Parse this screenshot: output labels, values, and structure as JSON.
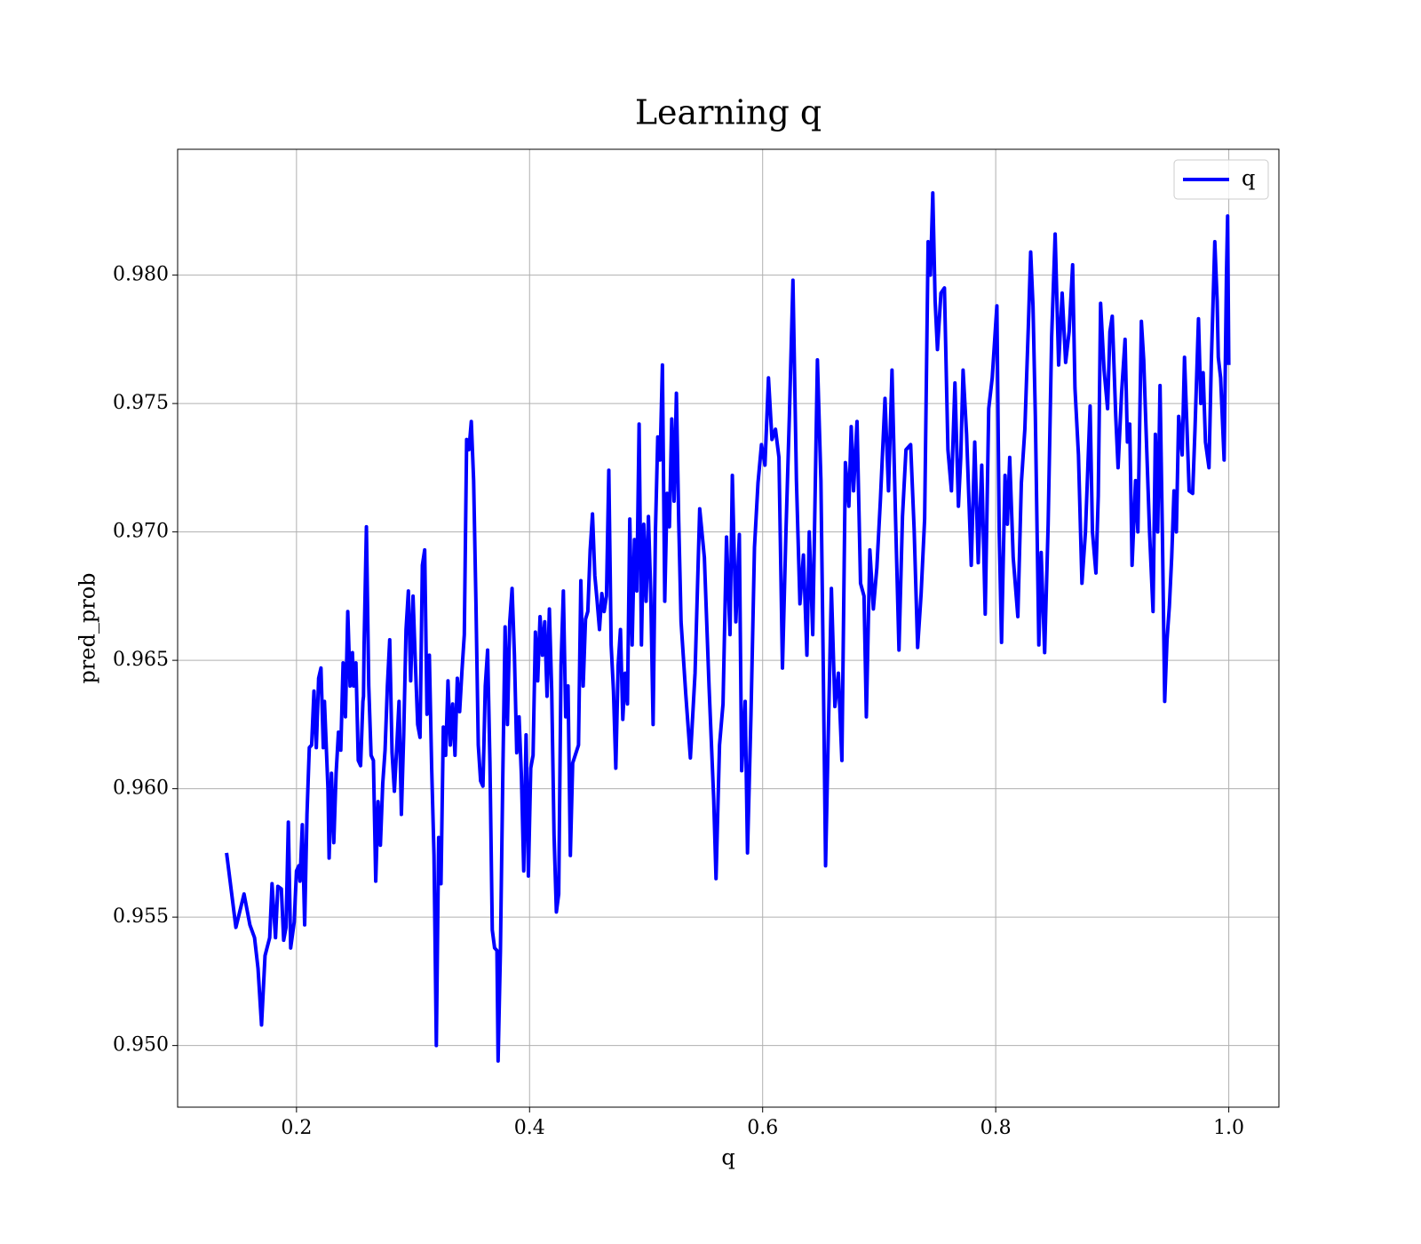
{
  "chart_data": {
    "type": "line",
    "title": "Learning q",
    "xlabel": "q",
    "ylabel": "pred_prob",
    "x": [
      0.14,
      0.148,
      0.155,
      0.16,
      0.164,
      0.167,
      0.17,
      0.173,
      0.177,
      0.179,
      0.182,
      0.184,
      0.187,
      0.189,
      0.191,
      0.193,
      0.195,
      0.198,
      0.2,
      0.202,
      0.203,
      0.205,
      0.207,
      0.209,
      0.211,
      0.213,
      0.215,
      0.217,
      0.219,
      0.221,
      0.223,
      0.224,
      0.227,
      0.228,
      0.23,
      0.232,
      0.234,
      0.236,
      0.238,
      0.24,
      0.242,
      0.244,
      0.246,
      0.248,
      0.249,
      0.251,
      0.253,
      0.255,
      0.257,
      0.2575,
      0.258,
      0.26,
      0.262,
      0.264,
      0.266,
      0.268,
      0.27,
      0.272,
      0.274,
      0.276,
      0.278,
      0.28,
      0.282,
      0.284,
      0.286,
      0.288,
      0.29,
      0.292,
      0.294,
      0.296,
      0.298,
      0.3,
      0.302,
      0.304,
      0.306,
      0.308,
      0.31,
      0.312,
      0.314,
      0.316,
      0.318,
      0.32,
      0.322,
      0.324,
      0.326,
      0.328,
      0.33,
      0.332,
      0.334,
      0.336,
      0.338,
      0.34,
      0.342,
      0.344,
      0.346,
      0.348,
      0.35,
      0.352,
      0.354,
      0.356,
      0.358,
      0.36,
      0.362,
      0.364,
      0.366,
      0.368,
      0.37,
      0.372,
      0.373,
      0.375,
      0.377,
      0.379,
      0.381,
      0.383,
      0.385,
      0.387,
      0.389,
      0.391,
      0.393,
      0.395,
      0.397,
      0.399,
      0.401,
      0.403,
      0.405,
      0.407,
      0.409,
      0.411,
      0.413,
      0.415,
      0.417,
      0.419,
      0.421,
      0.423,
      0.425,
      0.427,
      0.429,
      0.431,
      0.433,
      0.435,
      0.437,
      0.442,
      0.444,
      0.446,
      0.448,
      0.45,
      0.452,
      0.454,
      0.456,
      0.458,
      0.46,
      0.462,
      0.464,
      0.466,
      0.468,
      0.47,
      0.472,
      0.474,
      0.476,
      0.478,
      0.48,
      0.482,
      0.484,
      0.486,
      0.488,
      0.49,
      0.492,
      0.494,
      0.496,
      0.498,
      0.5,
      0.502,
      0.504,
      0.506,
      0.508,
      0.51,
      0.512,
      0.514,
      0.516,
      0.518,
      0.52,
      0.522,
      0.524,
      0.526,
      0.528,
      0.53,
      0.534,
      0.538,
      0.542,
      0.546,
      0.55,
      0.554,
      0.558,
      0.56,
      0.563,
      0.566,
      0.569,
      0.572,
      0.574,
      0.577,
      0.58,
      0.582,
      0.585,
      0.587,
      0.59,
      0.593,
      0.596,
      0.599,
      0.602,
      0.605,
      0.608,
      0.611,
      0.614,
      0.617,
      0.62,
      0.623,
      0.626,
      0.629,
      0.632,
      0.635,
      0.638,
      0.64,
      0.643,
      0.647,
      0.65,
      0.652,
      0.654,
      0.656,
      0.659,
      0.662,
      0.665,
      0.668,
      0.671,
      0.674,
      0.676,
      0.678,
      0.681,
      0.684,
      0.687,
      0.689,
      0.692,
      0.695,
      0.698,
      0.701,
      0.705,
      0.708,
      0.711,
      0.714,
      0.717,
      0.72,
      0.723,
      0.727,
      0.73,
      0.733,
      0.736,
      0.739,
      0.742,
      0.744,
      0.746,
      0.748,
      0.75,
      0.753,
      0.756,
      0.759,
      0.762,
      0.765,
      0.768,
      0.77,
      0.772,
      0.775,
      0.779,
      0.782,
      0.785,
      0.788,
      0.791,
      0.794,
      0.797,
      0.801,
      0.803,
      0.805,
      0.808,
      0.81,
      0.812,
      0.815,
      0.819,
      0.822,
      0.825,
      0.828,
      0.83,
      0.832,
      0.834,
      0.837,
      0.839,
      0.842,
      0.845,
      0.848,
      0.851,
      0.854,
      0.857,
      0.86,
      0.863,
      0.866,
      0.868,
      0.871,
      0.874,
      0.877,
      0.881,
      0.883,
      0.886,
      0.888,
      0.89,
      0.893,
      0.896,
      0.898,
      0.9,
      0.903,
      0.905,
      0.908,
      0.911,
      0.913,
      0.915,
      0.917,
      0.92,
      0.922,
      0.925,
      0.927,
      0.929,
      0.932,
      0.935,
      0.937,
      0.939,
      0.941,
      0.943,
      0.945,
      0.947,
      0.949,
      0.951,
      0.953,
      0.955,
      0.957,
      0.96,
      0.962,
      0.964,
      0.966,
      0.969,
      0.971,
      0.974,
      0.976,
      0.978,
      0.98,
      0.983,
      0.985,
      0.988,
      0.99,
      0.991,
      0.993,
      0.996,
      0.998,
      0.999,
      1.0
    ],
    "series": [
      {
        "name": "q",
        "color": "#0000ff",
        "values": [
          0.9575,
          0.9546,
          0.9559,
          0.9547,
          0.9542,
          0.953,
          0.9508,
          0.9535,
          0.9542,
          0.9563,
          0.9542,
          0.9562,
          0.9561,
          0.9541,
          0.9546,
          0.9587,
          0.9538,
          0.9548,
          0.9568,
          0.957,
          0.9564,
          0.9586,
          0.9547,
          0.959,
          0.9616,
          0.9617,
          0.9638,
          0.9616,
          0.9643,
          0.9647,
          0.9616,
          0.9634,
          0.96,
          0.9573,
          0.9606,
          0.9579,
          0.9606,
          0.9622,
          0.9615,
          0.9649,
          0.9628,
          0.9669,
          0.964,
          0.9653,
          0.964,
          0.9649,
          0.9611,
          0.9609,
          0.9634,
          0.9636,
          0.9656,
          0.9702,
          0.964,
          0.9613,
          0.9611,
          0.9564,
          0.9595,
          0.9578,
          0.9602,
          0.9615,
          0.964,
          0.9658,
          0.9614,
          0.9599,
          0.9616,
          0.9634,
          0.959,
          0.9621,
          0.9662,
          0.9677,
          0.9642,
          0.9675,
          0.9649,
          0.9625,
          0.962,
          0.9687,
          0.9693,
          0.9629,
          0.9652,
          0.9608,
          0.9574,
          0.95,
          0.9581,
          0.9563,
          0.9624,
          0.9613,
          0.9642,
          0.9617,
          0.9633,
          0.9613,
          0.9643,
          0.963,
          0.9646,
          0.966,
          0.9736,
          0.9732,
          0.9743,
          0.972,
          0.9672,
          0.9617,
          0.9603,
          0.9601,
          0.964,
          0.9654,
          0.961,
          0.9545,
          0.9538,
          0.9537,
          0.9494,
          0.9537,
          0.9604,
          0.9663,
          0.9625,
          0.9665,
          0.9678,
          0.9652,
          0.9614,
          0.9628,
          0.9605,
          0.9568,
          0.9621,
          0.9566,
          0.9608,
          0.9613,
          0.9661,
          0.9642,
          0.9667,
          0.9652,
          0.9665,
          0.9636,
          0.967,
          0.9638,
          0.9582,
          0.9552,
          0.9559,
          0.9648,
          0.9677,
          0.9628,
          0.964,
          0.9574,
          0.961,
          0.9617,
          0.9681,
          0.964,
          0.9666,
          0.9669,
          0.9693,
          0.9707,
          0.9683,
          0.9673,
          0.9662,
          0.9676,
          0.9669,
          0.9675,
          0.9724,
          0.9656,
          0.9638,
          0.9608,
          0.9648,
          0.9662,
          0.9627,
          0.9645,
          0.9633,
          0.9705,
          0.9656,
          0.9697,
          0.9677,
          0.9742,
          0.9656,
          0.9703,
          0.9673,
          0.9706,
          0.9676,
          0.9625,
          0.97,
          0.9737,
          0.9728,
          0.9765,
          0.9673,
          0.9715,
          0.9702,
          0.9744,
          0.9712,
          0.9754,
          0.9704,
          0.9665,
          0.9637,
          0.9612,
          0.9645,
          0.9709,
          0.969,
          0.964,
          0.9596,
          0.9565,
          0.9617,
          0.9633,
          0.9698,
          0.966,
          0.9722,
          0.9665,
          0.9699,
          0.9607,
          0.9634,
          0.9575,
          0.9629,
          0.9694,
          0.9719,
          0.9734,
          0.9726,
          0.976,
          0.9736,
          0.974,
          0.9729,
          0.9647,
          0.97,
          0.9746,
          0.9798,
          0.972,
          0.9672,
          0.9691,
          0.9652,
          0.97,
          0.966,
          0.9767,
          0.972,
          0.9648,
          0.957,
          0.9614,
          0.9678,
          0.9632,
          0.9645,
          0.9611,
          0.9727,
          0.971,
          0.9741,
          0.9716,
          0.9743,
          0.968,
          0.9675,
          0.9628,
          0.9693,
          0.967,
          0.9686,
          0.9712,
          0.9752,
          0.9716,
          0.9763,
          0.9706,
          0.9654,
          0.9706,
          0.9732,
          0.9734,
          0.9701,
          0.9655,
          0.9676,
          0.9705,
          0.9813,
          0.98,
          0.9832,
          0.979,
          0.9771,
          0.9793,
          0.9795,
          0.9732,
          0.9716,
          0.9758,
          0.971,
          0.9729,
          0.9763,
          0.9738,
          0.9687,
          0.9735,
          0.9688,
          0.9726,
          0.9668,
          0.9748,
          0.976,
          0.9788,
          0.97,
          0.9657,
          0.9722,
          0.9703,
          0.9729,
          0.969,
          0.9667,
          0.9719,
          0.974,
          0.978,
          0.9809,
          0.9788,
          0.9745,
          0.9656,
          0.9692,
          0.9653,
          0.9703,
          0.9776,
          0.9816,
          0.9765,
          0.9793,
          0.9766,
          0.9778,
          0.9804,
          0.9756,
          0.973,
          0.968,
          0.97,
          0.9749,
          0.97,
          0.9684,
          0.9714,
          0.9789,
          0.9763,
          0.9748,
          0.9778,
          0.9784,
          0.9745,
          0.9725,
          0.9754,
          0.9775,
          0.9735,
          0.9742,
          0.9687,
          0.972,
          0.97,
          0.9782,
          0.9767,
          0.974,
          0.97,
          0.9669,
          0.9738,
          0.97,
          0.9757,
          0.97,
          0.9634,
          0.9658,
          0.9671,
          0.969,
          0.9716,
          0.97,
          0.9745,
          0.973,
          0.9768,
          0.9742,
          0.9716,
          0.9715,
          0.974,
          0.9783,
          0.975,
          0.9762,
          0.9735,
          0.9725,
          0.9766,
          0.9813,
          0.979,
          0.9768,
          0.976,
          0.9728,
          0.98,
          0.9823,
          0.9765
        ]
      }
    ],
    "xlim": [
      0.098,
      1.043
    ],
    "ylim": [
      0.9476,
      0.9849
    ],
    "xticks": [
      0.2,
      0.4,
      0.6,
      0.8,
      {
        "value": 1.0,
        "label": "1.0"
      }
    ],
    "yticks": [
      {
        "value": 0.95,
        "label": "0.950"
      },
      0.955,
      {
        "value": 0.96,
        "label": "0.960"
      },
      0.965,
      {
        "value": 0.97,
        "label": "0.970"
      },
      0.975,
      {
        "value": 0.98,
        "label": "0.980"
      }
    ],
    "grid": true,
    "legend": "upper right"
  }
}
